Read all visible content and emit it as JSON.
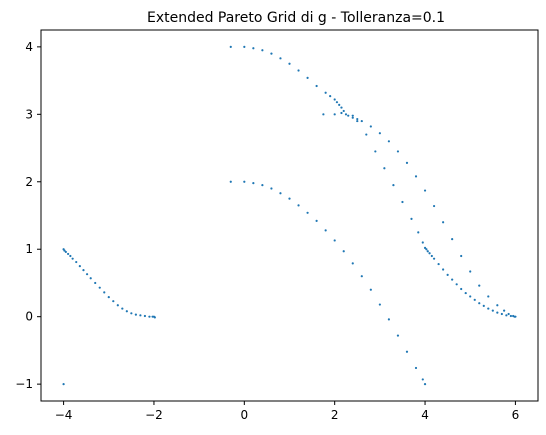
{
  "chart_data": {
    "type": "scatter",
    "title": "Extended Pareto Grid di g - Tolleranza=0.1",
    "xlabel": "",
    "ylabel": "",
    "xlim": [
      -4.5,
      6.5
    ],
    "ylim": [
      -1.25,
      4.25
    ],
    "xticks": [
      -4,
      -2,
      0,
      2,
      4,
      6
    ],
    "yticks": [
      -1,
      0,
      1,
      2,
      3,
      4
    ],
    "grid": false,
    "marker_color": "#1f77b4",
    "series": [
      {
        "points": [
          [
            -4.0,
            1.0
          ],
          [
            -3.98,
            0.98
          ],
          [
            -3.95,
            0.96
          ],
          [
            -3.9,
            0.93
          ],
          [
            -3.85,
            0.9
          ],
          [
            -3.8,
            0.86
          ],
          [
            -3.72,
            0.81
          ],
          [
            -3.64,
            0.75
          ],
          [
            -3.56,
            0.69
          ],
          [
            -3.48,
            0.63
          ],
          [
            -3.4,
            0.57
          ],
          [
            -3.3,
            0.5
          ],
          [
            -3.2,
            0.43
          ],
          [
            -3.1,
            0.36
          ],
          [
            -3.0,
            0.29
          ],
          [
            -2.9,
            0.23
          ],
          [
            -2.8,
            0.17
          ],
          [
            -2.7,
            0.12
          ],
          [
            -2.6,
            0.08
          ],
          [
            -2.5,
            0.05
          ],
          [
            -2.4,
            0.03
          ],
          [
            -2.3,
            0.02
          ],
          [
            -2.2,
            0.01
          ],
          [
            -2.1,
            0.0
          ],
          [
            -2.03,
            0.0
          ],
          [
            -2.0,
            0.0
          ],
          [
            -1.98,
            -0.01
          ],
          [
            -4.0,
            -1.0
          ],
          [
            -0.3,
            4.0
          ],
          [
            0.0,
            4.0
          ],
          [
            0.2,
            3.98
          ],
          [
            0.4,
            3.95
          ],
          [
            0.6,
            3.9
          ],
          [
            0.8,
            3.83
          ],
          [
            1.0,
            3.75
          ],
          [
            1.2,
            3.65
          ],
          [
            1.4,
            3.54
          ],
          [
            1.6,
            3.42
          ],
          [
            1.8,
            3.32
          ],
          [
            1.9,
            3.27
          ],
          [
            2.0,
            3.22
          ],
          [
            2.05,
            3.18
          ],
          [
            2.1,
            3.14
          ],
          [
            2.15,
            3.1
          ],
          [
            2.2,
            3.05
          ],
          [
            2.3,
            2.98
          ],
          [
            2.4,
            2.95
          ],
          [
            2.5,
            2.93
          ],
          [
            2.6,
            2.9
          ],
          [
            2.8,
            2.82
          ],
          [
            3.0,
            2.72
          ],
          [
            3.2,
            2.6
          ],
          [
            3.4,
            2.45
          ],
          [
            3.6,
            2.28
          ],
          [
            3.8,
            2.08
          ],
          [
            4.0,
            1.87
          ],
          [
            4.2,
            1.64
          ],
          [
            4.4,
            1.4
          ],
          [
            4.6,
            1.15
          ],
          [
            4.8,
            0.9
          ],
          [
            5.0,
            0.67
          ],
          [
            5.2,
            0.46
          ],
          [
            5.4,
            0.3
          ],
          [
            5.6,
            0.17
          ],
          [
            5.75,
            0.09
          ],
          [
            5.85,
            0.04
          ],
          [
            5.95,
            0.01
          ],
          [
            6.0,
            0.0
          ],
          [
            1.75,
            3.0
          ],
          [
            2.0,
            3.0
          ],
          [
            2.15,
            3.02
          ],
          [
            2.25,
            3.0
          ],
          [
            2.4,
            2.98
          ],
          [
            2.5,
            2.9
          ],
          [
            2.7,
            2.7
          ],
          [
            2.9,
            2.45
          ],
          [
            3.1,
            2.2
          ],
          [
            3.3,
            1.95
          ],
          [
            3.5,
            1.7
          ],
          [
            3.7,
            1.45
          ],
          [
            3.85,
            1.25
          ],
          [
            3.95,
            1.1
          ],
          [
            4.0,
            1.02
          ],
          [
            4.03,
            1.0
          ],
          [
            4.06,
            0.97
          ],
          [
            4.1,
            0.94
          ],
          [
            4.15,
            0.9
          ],
          [
            4.2,
            0.86
          ],
          [
            4.3,
            0.78
          ],
          [
            4.4,
            0.7
          ],
          [
            4.5,
            0.62
          ],
          [
            4.6,
            0.55
          ],
          [
            4.7,
            0.48
          ],
          [
            4.8,
            0.41
          ],
          [
            4.9,
            0.35
          ],
          [
            5.0,
            0.3
          ],
          [
            5.1,
            0.25
          ],
          [
            5.2,
            0.2
          ],
          [
            5.3,
            0.16
          ],
          [
            5.4,
            0.12
          ],
          [
            5.5,
            0.09
          ],
          [
            5.6,
            0.06
          ],
          [
            5.7,
            0.04
          ],
          [
            5.8,
            0.02
          ],
          [
            5.9,
            0.01
          ],
          [
            5.98,
            0.0
          ],
          [
            -0.3,
            2.0
          ],
          [
            0.0,
            2.0
          ],
          [
            0.2,
            1.98
          ],
          [
            0.4,
            1.95
          ],
          [
            0.6,
            1.9
          ],
          [
            0.8,
            1.83
          ],
          [
            1.0,
            1.75
          ],
          [
            1.2,
            1.65
          ],
          [
            1.4,
            1.54
          ],
          [
            1.6,
            1.42
          ],
          [
            1.8,
            1.28
          ],
          [
            2.0,
            1.13
          ],
          [
            2.2,
            0.97
          ],
          [
            2.4,
            0.79
          ],
          [
            2.6,
            0.6
          ],
          [
            2.8,
            0.4
          ],
          [
            3.0,
            0.18
          ],
          [
            3.2,
            -0.04
          ],
          [
            3.4,
            -0.28
          ],
          [
            3.6,
            -0.52
          ],
          [
            3.8,
            -0.76
          ],
          [
            3.95,
            -0.93
          ],
          [
            4.0,
            -1.0
          ]
        ]
      }
    ]
  }
}
